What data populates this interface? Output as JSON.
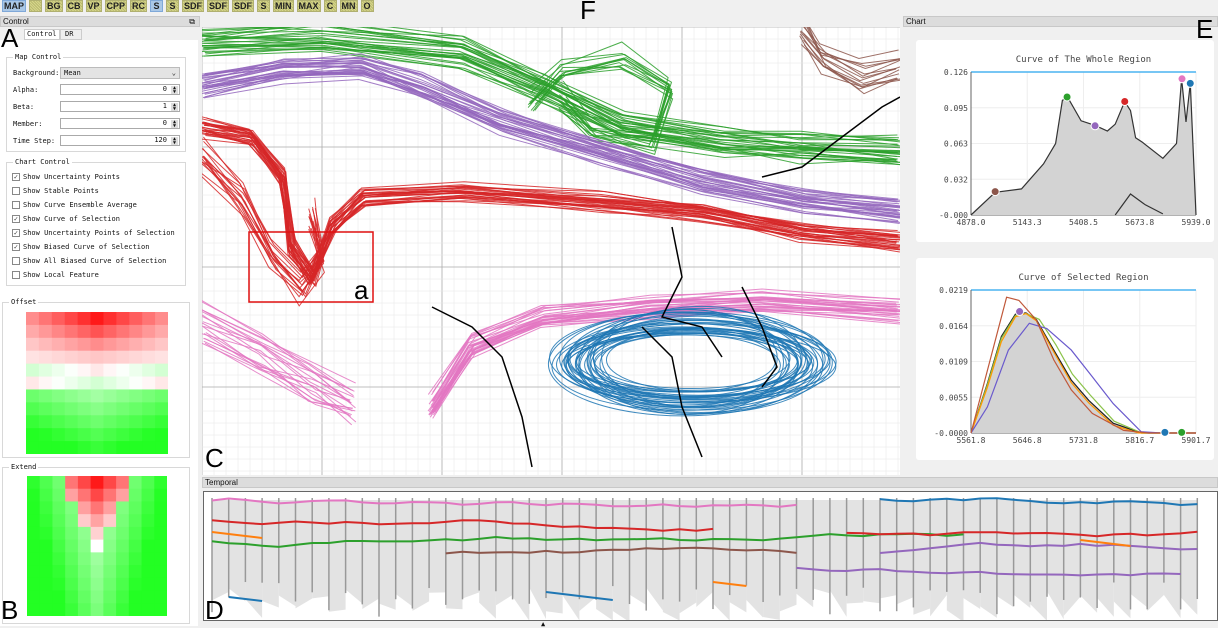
{
  "toolbar": {
    "buttons": [
      "MAP",
      "",
      "BG",
      "CB",
      "VP",
      "CPP",
      "RC",
      "S",
      "S",
      "SDF",
      "SDF",
      "SDF",
      "S",
      "MIN",
      "MAX",
      "C",
      "MN",
      "O"
    ],
    "selected": [
      0,
      7
    ]
  },
  "labels": {
    "A": "A",
    "B": "B",
    "C": "C",
    "D": "D",
    "E": "E",
    "F": "F",
    "a": "a"
  },
  "control": {
    "title": "Control",
    "tabs": [
      "Control",
      "DR"
    ],
    "map_control": {
      "title": "Map Control",
      "background_label": "Background:",
      "background_value": "Mean",
      "fields": [
        {
          "label": "Alpha:",
          "value": "0"
        },
        {
          "label": "Beta:",
          "value": "1"
        },
        {
          "label": "Member:",
          "value": "0"
        },
        {
          "label": "Time Step:",
          "value": "120"
        }
      ]
    },
    "chart_control": {
      "title": "Chart Control",
      "options": [
        {
          "label": "Show Uncertainty Points",
          "checked": true
        },
        {
          "label": "Show Stable Points",
          "checked": false
        },
        {
          "label": "Show Curve Ensemble Average",
          "checked": false
        },
        {
          "label": "Show Curve of Selection",
          "checked": true
        },
        {
          "label": "Show Uncertainty Points of Selection",
          "checked": true
        },
        {
          "label": "Show Biased Curve of Selection",
          "checked": true
        },
        {
          "label": "Show All Biased Curve of Selection",
          "checked": false
        },
        {
          "label": "Show Local Feature",
          "checked": false
        }
      ]
    },
    "offset": {
      "title": "Offset"
    },
    "extend": {
      "title": "Extend"
    }
  },
  "map": {
    "bundle_colors": {
      "green": "#2ca02c",
      "purple": "#9467bd",
      "red": "#d62728",
      "pink": "#e377c2",
      "blue": "#1f77b4",
      "brown": "#8c564b"
    },
    "selection_color": "#e01010"
  },
  "chart_panel": {
    "title": "Chart"
  },
  "chart_data": [
    {
      "type": "area",
      "title": "Curve of The Whole Region",
      "xlim": [
        4878.0,
        5939.0
      ],
      "ylim": [
        0,
        0.126
      ],
      "xticks": [
        "4878.0",
        "5143.3",
        "5408.5",
        "5673.8",
        "5939.0"
      ],
      "yticks": [
        "-0.000",
        "0.032",
        "0.063",
        "0.095",
        "0.126"
      ],
      "series": [
        {
          "color": "#333333",
          "points": [
            [
              4878,
              0
            ],
            [
              4992,
              0.02
            ],
            [
              5116,
              0.023
            ],
            [
              5220,
              0.045
            ],
            [
              5277,
              0.063
            ],
            [
              5309,
              0.101
            ],
            [
              5333,
              0.104
            ],
            [
              5397,
              0.083
            ],
            [
              5462,
              0.079
            ],
            [
              5521,
              0.074
            ],
            [
              5558,
              0.08
            ],
            [
              5603,
              0.1
            ],
            [
              5630,
              0.092
            ],
            [
              5654,
              0.068
            ],
            [
              5687,
              0.064
            ],
            [
              5783,
              0.05
            ],
            [
              5847,
              0.063
            ],
            [
              5871,
              0.12
            ],
            [
              5892,
              0.082
            ],
            [
              5912,
              0.116
            ],
            [
              5939,
              0
            ]
          ]
        },
        {
          "color": "#333333",
          "points": [
            [
              5558,
              0
            ],
            [
              5630,
              0.0185
            ],
            [
              5700,
              0.009
            ],
            [
              5783,
              0.001
            ]
          ]
        }
      ],
      "markers": [
        {
          "x": 4992,
          "y": 0.0206,
          "color": "#8c564b"
        },
        {
          "x": 5331,
          "y": 0.104,
          "color": "#2ca02c"
        },
        {
          "x": 5463,
          "y": 0.0786,
          "color": "#9467bd"
        },
        {
          "x": 5603,
          "y": 0.1,
          "color": "#d62728"
        },
        {
          "x": 5873,
          "y": 0.12,
          "color": "#e377c2"
        },
        {
          "x": 5912,
          "y": 0.116,
          "color": "#1f77b4"
        }
      ]
    },
    {
      "type": "area",
      "title": "Curve of Selected Region",
      "xlim": [
        5561.8,
        5901.7
      ],
      "ylim": [
        0,
        0.0219
      ],
      "xticks": [
        "5561.8",
        "5646.8",
        "5731.8",
        "5816.7",
        "5901.7"
      ],
      "yticks": [
        "-0.0000",
        "0.0055",
        "0.0109",
        "0.0164",
        "0.0219"
      ],
      "series": [
        {
          "color": "#222222",
          "fill": true,
          "points": [
            [
              5561.8,
              0
            ],
            [
              5586.6,
              0.0076
            ],
            [
              5607.7,
              0.0148
            ],
            [
              5628.8,
              0.0182
            ],
            [
              5644.7,
              0.0184
            ],
            [
              5660.5,
              0.0174
            ],
            [
              5686.9,
              0.0127
            ],
            [
              5713.3,
              0.0081
            ],
            [
              5739.7,
              0.005
            ],
            [
              5776.6,
              0.0015
            ],
            [
              5818.8,
              0
            ],
            [
              5901.7,
              0
            ]
          ]
        },
        {
          "color": "#8bc34a",
          "points": [
            [
              5561.8,
              0
            ],
            [
              5586.6,
              0.0074
            ],
            [
              5607.7,
              0.0145
            ],
            [
              5628.8,
              0.018
            ],
            [
              5644.7,
              0.0183
            ],
            [
              5665,
              0.0174
            ],
            [
              5690,
              0.0135
            ],
            [
              5715,
              0.009
            ],
            [
              5742,
              0.0058
            ],
            [
              5778,
              0.0018
            ],
            [
              5820,
              0
            ],
            [
              5901.7,
              0
            ]
          ]
        },
        {
          "color": "#ff9800",
          "points": [
            [
              5561.8,
              0
            ],
            [
              5586.6,
              0.007
            ],
            [
              5607.7,
              0.014
            ],
            [
              5628.8,
              0.0178
            ],
            [
              5644.7,
              0.0183
            ],
            [
              5660.5,
              0.0172
            ],
            [
              5686.9,
              0.0124
            ],
            [
              5713.3,
              0.0077
            ],
            [
              5739.7,
              0.0046
            ],
            [
              5776.6,
              0.0012
            ],
            [
              5815,
              0
            ],
            [
              5901.7,
              0
            ]
          ]
        },
        {
          "color": "#6a5acd",
          "points": [
            [
              5561.8,
              0
            ],
            [
              5586.6,
              0.004
            ],
            [
              5618.3,
              0.0127
            ],
            [
              5649.9,
              0.0168
            ],
            [
              5676.3,
              0.016
            ],
            [
              5713.3,
              0.0127
            ],
            [
              5745,
              0.0086
            ],
            [
              5776.6,
              0.0045
            ],
            [
              5818.8,
              0.0002
            ],
            [
              5850,
              0
            ],
            [
              5901.7,
              0
            ]
          ]
        },
        {
          "color": "#c0583a",
          "points": [
            [
              5561.8,
              0
            ],
            [
              5615.6,
              0.0208
            ],
            [
              5634.1,
              0.0203
            ],
            [
              5660.5,
              0.0173
            ],
            [
              5686.9,
              0.0112
            ],
            [
              5713.3,
              0.0066
            ],
            [
              5745,
              0.003
            ],
            [
              5792.4,
              0.0004
            ],
            [
              5830,
              0
            ],
            [
              5901.7,
              0
            ]
          ]
        }
      ],
      "markers": [
        {
          "x": 5635.2,
          "y": 0.0186,
          "color": "#9467bd"
        },
        {
          "x": 5854.7,
          "y": 0.0001,
          "color": "#1f77b4"
        },
        {
          "x": 5880.1,
          "y": 0.0001,
          "color": "#2ca02c"
        }
      ]
    }
  ],
  "temporal": {
    "title": "Temporal",
    "line_colors": [
      "#e377c2",
      "#8c564b",
      "#d62728",
      "#1f77b4",
      "#ff7f0e",
      "#2ca02c",
      "#9467bd"
    ]
  }
}
